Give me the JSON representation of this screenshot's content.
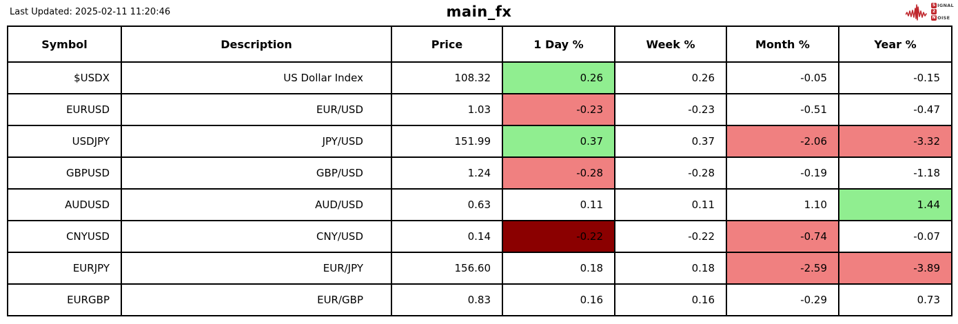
{
  "meta": {
    "last_updated": "Last Updated: 2025-02-11 11:20:46",
    "title": "main_fx"
  },
  "logo": {
    "line1_initial": "S",
    "line1_rest": "IGNAL",
    "line2": "2",
    "line3_initial": "N",
    "line3_rest": "OISE",
    "accent_color": "#c0272d"
  },
  "colors": {
    "positive": "#90ee90",
    "negative": "#f08080",
    "strong_negative": "#8b0000",
    "border": "#000000",
    "background": "#ffffff"
  },
  "chart_data": {
    "type": "table",
    "title": "main_fx",
    "columns": [
      "Symbol",
      "Description",
      "Price",
      "1 Day %",
      "Week %",
      "Month %",
      "Year %"
    ],
    "rows": [
      {
        "cells": [
          "$USDX",
          "US Dollar Index",
          "108.32",
          "0.26",
          "0.26",
          "-0.05",
          "-0.15"
        ],
        "bg": [
          null,
          null,
          null,
          "positive",
          null,
          null,
          null
        ]
      },
      {
        "cells": [
          "EURUSD",
          "EUR/USD",
          "1.03",
          "-0.23",
          "-0.23",
          "-0.51",
          "-0.47"
        ],
        "bg": [
          null,
          null,
          null,
          "negative",
          null,
          null,
          null
        ]
      },
      {
        "cells": [
          "USDJPY",
          "JPY/USD",
          "151.99",
          "0.37",
          "0.37",
          "-2.06",
          "-3.32"
        ],
        "bg": [
          null,
          null,
          null,
          "positive",
          null,
          "negative",
          "negative"
        ]
      },
      {
        "cells": [
          "GBPUSD",
          "GBP/USD",
          "1.24",
          "-0.28",
          "-0.28",
          "-0.19",
          "-1.18"
        ],
        "bg": [
          null,
          null,
          null,
          "negative",
          null,
          null,
          null
        ]
      },
      {
        "cells": [
          "AUDUSD",
          "AUD/USD",
          "0.63",
          "0.11",
          "0.11",
          "1.10",
          "1.44"
        ],
        "bg": [
          null,
          null,
          null,
          null,
          null,
          null,
          "positive"
        ]
      },
      {
        "cells": [
          "CNYUSD",
          "CNY/USD",
          "0.14",
          "-0.22",
          "-0.22",
          "-0.74",
          "-0.07"
        ],
        "bg": [
          null,
          null,
          null,
          "strong_negative",
          null,
          "negative",
          null
        ]
      },
      {
        "cells": [
          "EURJPY",
          "EUR/JPY",
          "156.60",
          "0.18",
          "0.18",
          "-2.59",
          "-3.89"
        ],
        "bg": [
          null,
          null,
          null,
          null,
          null,
          "negative",
          "negative"
        ]
      },
      {
        "cells": [
          "EURGBP",
          "EUR/GBP",
          "0.83",
          "0.16",
          "0.16",
          "-0.29",
          "0.73"
        ],
        "bg": [
          null,
          null,
          null,
          null,
          null,
          null,
          null
        ]
      }
    ]
  }
}
